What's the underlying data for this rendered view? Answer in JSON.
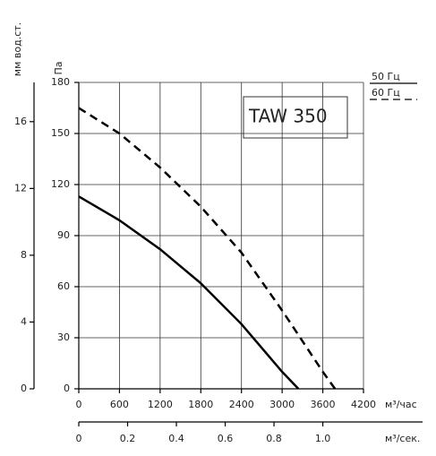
{
  "chart_data": {
    "type": "line",
    "title": "TAW 350",
    "y_label": "Па",
    "x_label": "м³/час",
    "y2_label": "мм вод.ст.",
    "x2_label": "м³/сек.",
    "xlim": [
      0,
      4200
    ],
    "xticks": [
      0,
      600,
      1200,
      1800,
      2400,
      3000,
      3600,
      4200
    ],
    "ylim": [
      0,
      180
    ],
    "yticks": [
      0,
      30,
      60,
      90,
      120,
      150,
      180
    ],
    "y2lim": [
      0,
      18.35
    ],
    "y2ticks": [
      0,
      4,
      8,
      12,
      16
    ],
    "x2lim": [
      0,
      1.1667
    ],
    "x2ticks": [
      0,
      0.2,
      0.4,
      0.6,
      0.8,
      {
        "value": 1,
        "label": "1.0"
      }
    ],
    "grid": true,
    "series": [
      {
        "name": "50 Гц",
        "color": "#000000",
        "dash": false,
        "x": [
          0,
          600,
          1200,
          1800,
          2400,
          3000,
          3240
        ],
        "values": [
          113,
          99,
          82,
          62,
          38,
          10,
          0
        ]
      },
      {
        "name": "60 Гц",
        "color": "#000000",
        "dash": true,
        "x": [
          0,
          600,
          1200,
          1800,
          2400,
          3000,
          3600,
          3780
        ],
        "values": [
          165,
          150,
          130,
          107,
          80,
          46,
          10,
          0
        ]
      }
    ]
  }
}
